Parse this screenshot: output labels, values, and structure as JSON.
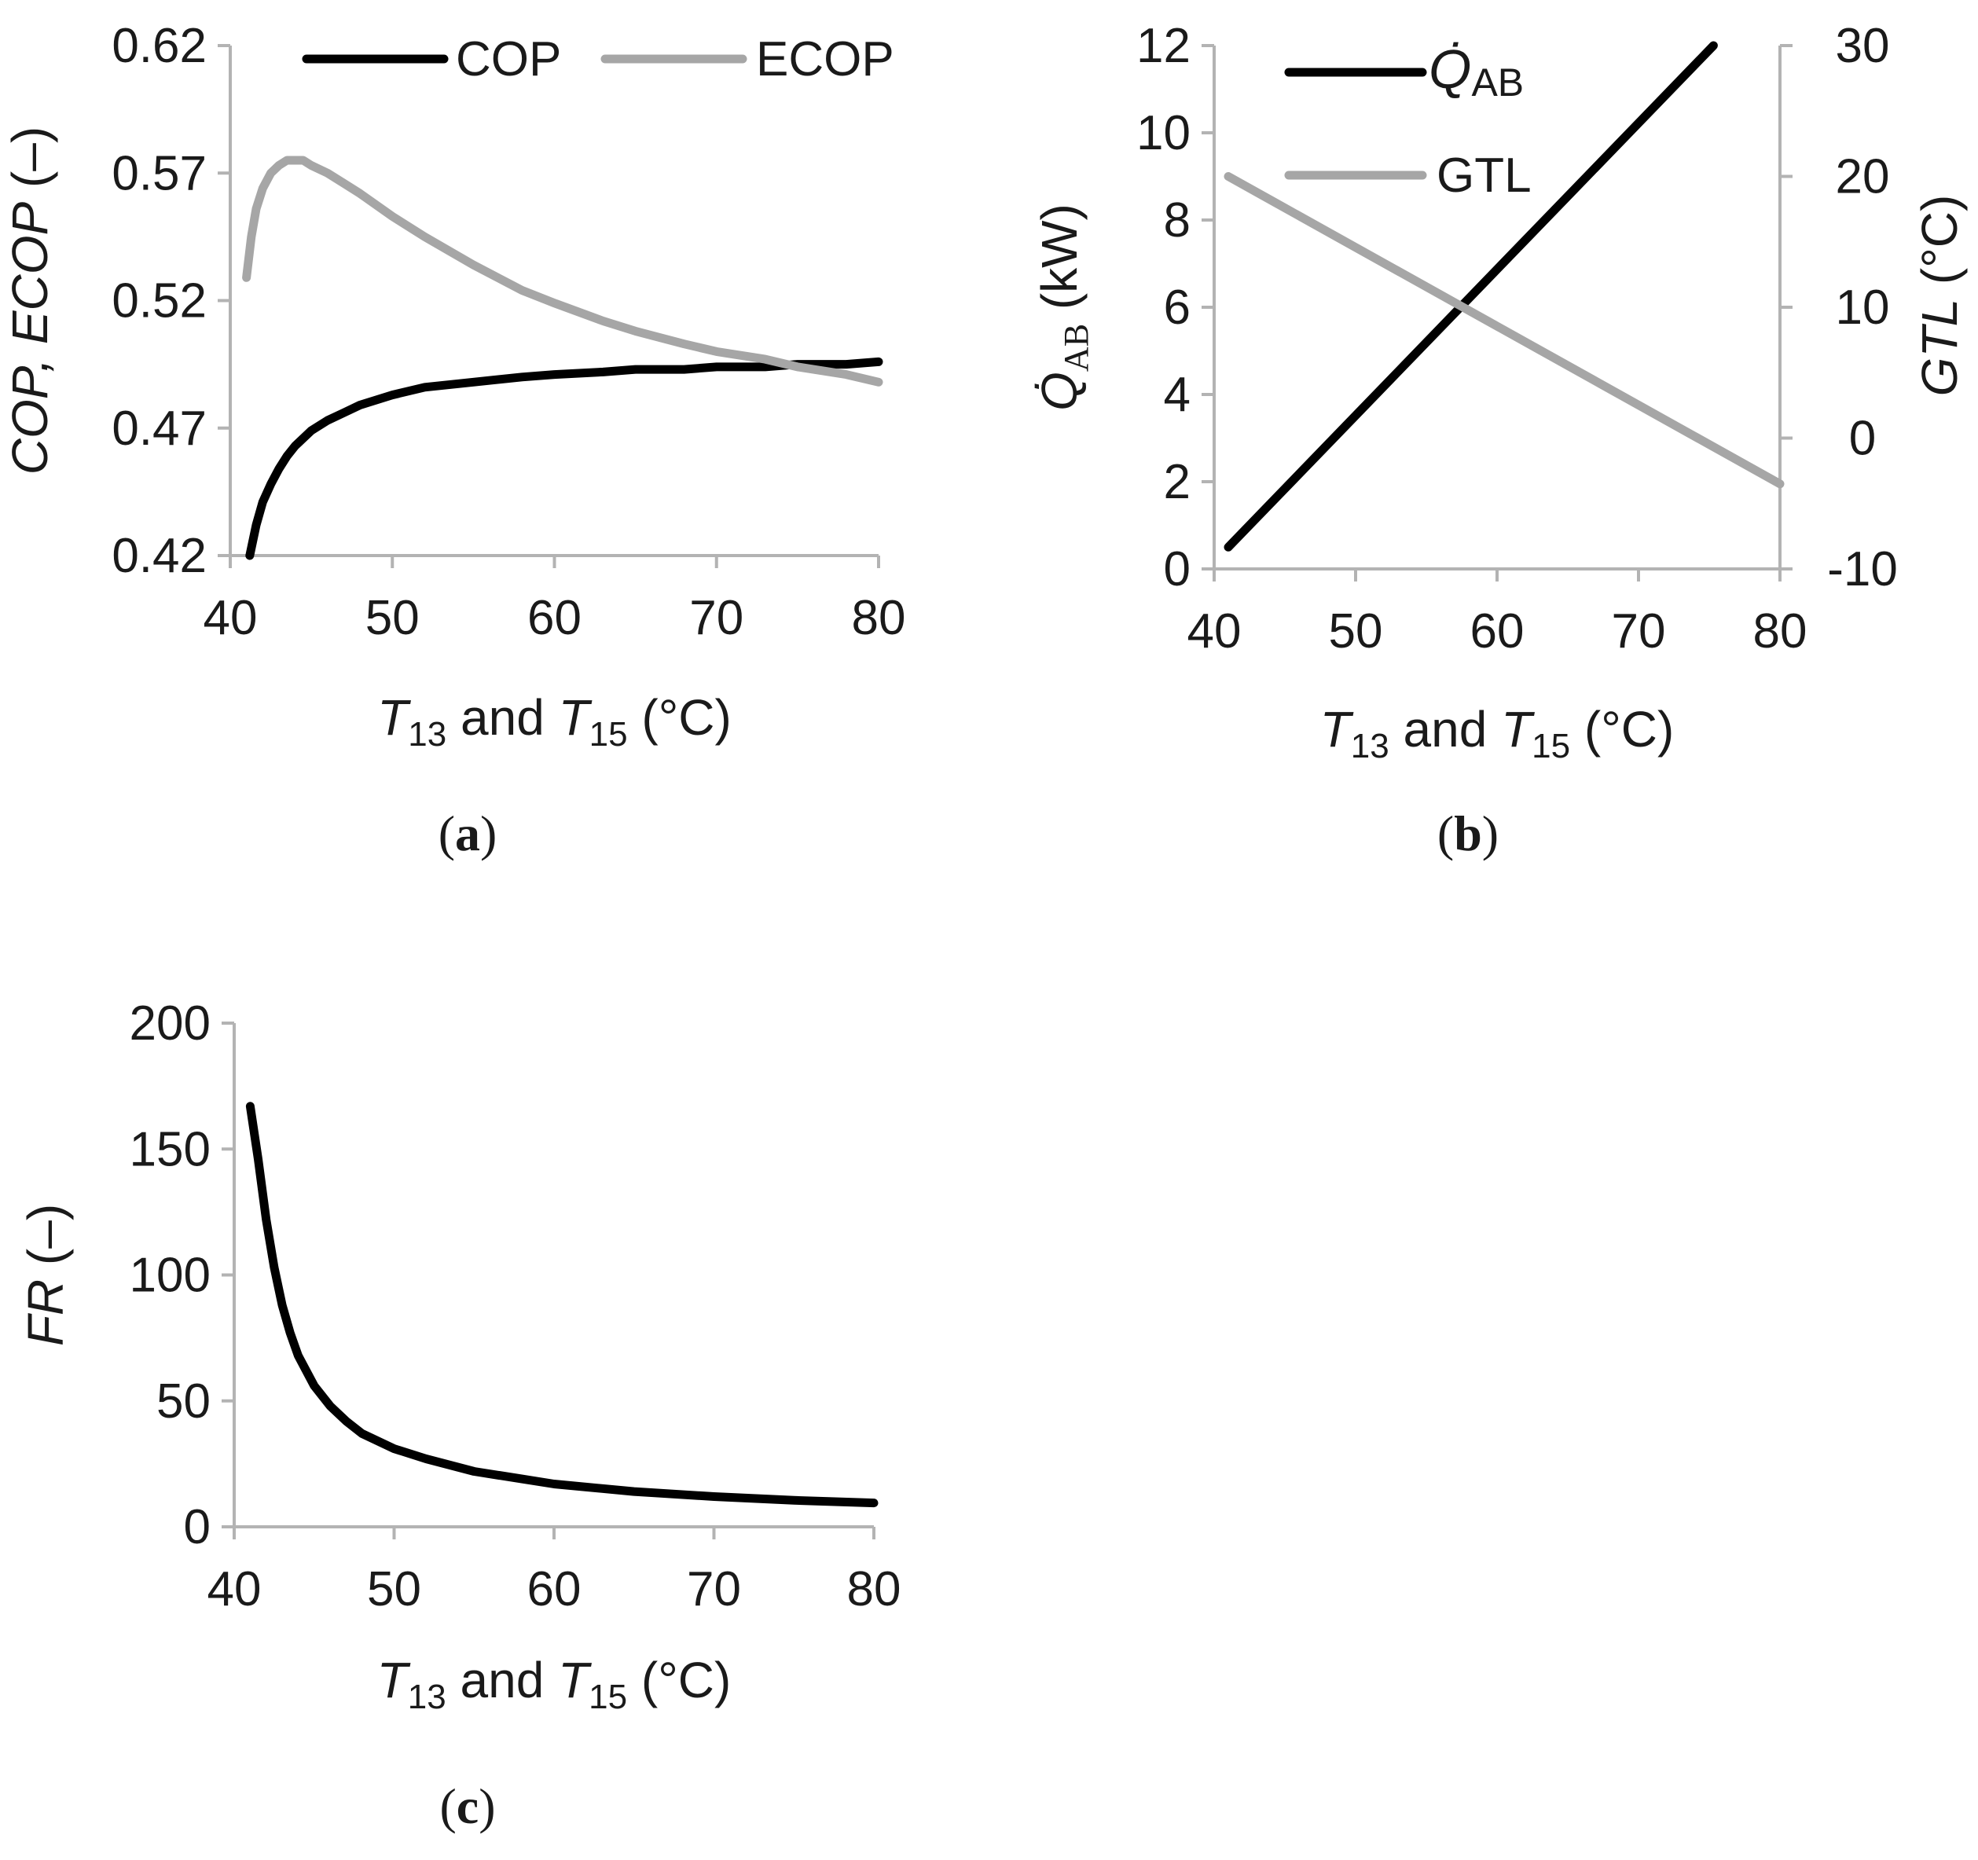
{
  "colors": {
    "black_series": "#000000",
    "gray_series": "#a6a6a6",
    "axis": "#b3b3b3",
    "text": "#1a1a1a"
  },
  "chart_data": [
    {
      "id": "a",
      "panel_prefix": "(",
      "panel_label": "a",
      "panel_suffix": ")",
      "type": "line",
      "x_label": {
        "pre": "",
        "t1": "T",
        "s1": "13",
        "mid": " and ",
        "t2": "T",
        "s2": "15",
        "post": " (°C)"
      },
      "y_label": {
        "italic": "COP, ECOP",
        "post": " (–)"
      },
      "xlim": [
        40,
        80
      ],
      "ylim": [
        0.42,
        0.62
      ],
      "x_ticks": [
        {
          "value": 40,
          "label": "40"
        },
        {
          "value": 50,
          "label": "50"
        },
        {
          "value": 60,
          "label": "60"
        },
        {
          "value": 70,
          "label": "70"
        },
        {
          "value": 80,
          "label": "80"
        }
      ],
      "y_ticks": [
        {
          "value": 0.42,
          "label": "0.42"
        },
        {
          "value": 0.47,
          "label": "0.47"
        },
        {
          "value": 0.52,
          "label": "0.52"
        },
        {
          "value": 0.57,
          "label": "0.57"
        },
        {
          "value": 0.62,
          "label": "0.62"
        }
      ],
      "series": [
        {
          "name": "COP",
          "color": "#000000",
          "axis": "left",
          "x": [
            41.2,
            41.6,
            42,
            42.5,
            43,
            43.5,
            44,
            45,
            46,
            47,
            48,
            50,
            52,
            55,
            58,
            60,
            63,
            65,
            68,
            70,
            73,
            75,
            78,
            80
          ],
          "y": [
            0.42,
            0.432,
            0.441,
            0.448,
            0.454,
            0.459,
            0.463,
            0.469,
            0.473,
            0.476,
            0.479,
            0.483,
            0.486,
            0.488,
            0.49,
            0.491,
            0.492,
            0.493,
            0.493,
            0.494,
            0.494,
            0.495,
            0.495,
            0.496
          ]
        },
        {
          "name": "ECOP",
          "color": "#a6a6a6",
          "axis": "left",
          "x": [
            41,
            41.3,
            41.6,
            42,
            42.5,
            43,
            43.5,
            44,
            44.5,
            45,
            46,
            47,
            48,
            50,
            52,
            55,
            58,
            60,
            63,
            65,
            68,
            70,
            73,
            75,
            78,
            80
          ],
          "y": [
            0.529,
            0.545,
            0.556,
            0.564,
            0.57,
            0.573,
            0.575,
            0.575,
            0.575,
            0.573,
            0.57,
            0.566,
            0.562,
            0.553,
            0.545,
            0.534,
            0.524,
            0.519,
            0.512,
            0.508,
            0.503,
            0.5,
            0.497,
            0.494,
            0.491,
            0.488
          ]
        }
      ]
    },
    {
      "id": "b",
      "panel_prefix": "(",
      "panel_label": "b",
      "panel_suffix": ")",
      "type": "line",
      "x_label": {
        "pre": "",
        "t1": "T",
        "s1": "13",
        "mid": " and ",
        "t2": "T",
        "s2": "15",
        "post": "  (°C)"
      },
      "y_label": {
        "italic": "Q̇",
        "sub": "AB",
        "post": " (kW)"
      },
      "y2_label": {
        "italic": "GTL",
        "post": " (°C)"
      },
      "xlim": [
        40,
        80
      ],
      "ylim": [
        0,
        12
      ],
      "y2lim": [
        -10,
        30
      ],
      "x_ticks": [
        {
          "value": 40,
          "label": "40"
        },
        {
          "value": 50,
          "label": "50"
        },
        {
          "value": 60,
          "label": "60"
        },
        {
          "value": 70,
          "label": "70"
        },
        {
          "value": 80,
          "label": "80"
        }
      ],
      "y_ticks": [
        {
          "value": 0,
          "label": "0"
        },
        {
          "value": 2,
          "label": "2"
        },
        {
          "value": 4,
          "label": "4"
        },
        {
          "value": 6,
          "label": "6"
        },
        {
          "value": 8,
          "label": "8"
        },
        {
          "value": 10,
          "label": "10"
        },
        {
          "value": 12,
          "label": "12"
        }
      ],
      "y2_ticks": [
        {
          "value": -10,
          "label": "-10"
        },
        {
          "value": 0,
          "label": "0"
        },
        {
          "value": 10,
          "label": "10"
        },
        {
          "value": 20,
          "label": "20"
        },
        {
          "value": 30,
          "label": "30"
        }
      ],
      "series": [
        {
          "name": "Q̇",
          "name_sub": "AB",
          "color": "#000000",
          "axis": "left",
          "x": [
            41,
            75.3
          ],
          "y": [
            0.5,
            12.0
          ]
        },
        {
          "name": "GTL",
          "color": "#a6a6a6",
          "axis": "right",
          "x": [
            41,
            80
          ],
          "y": [
            20.0,
            -3.5
          ]
        }
      ]
    },
    {
      "id": "c",
      "panel_prefix": "(",
      "panel_label": "c",
      "panel_suffix": ")",
      "type": "line",
      "x_label": {
        "pre": "",
        "t1": "T",
        "s1": "13",
        "mid": " and ",
        "t2": "T",
        "s2": "15",
        "post": " (°C)"
      },
      "y_label": {
        "italic": "FR",
        "post": " (–)"
      },
      "xlim": [
        40,
        80
      ],
      "ylim": [
        0,
        200
      ],
      "x_ticks": [
        {
          "value": 40,
          "label": "40"
        },
        {
          "value": 50,
          "label": "50"
        },
        {
          "value": 60,
          "label": "60"
        },
        {
          "value": 70,
          "label": "70"
        },
        {
          "value": 80,
          "label": "80"
        }
      ],
      "y_ticks": [
        {
          "value": 0,
          "label": "0"
        },
        {
          "value": 50,
          "label": "50"
        },
        {
          "value": 100,
          "label": "100"
        },
        {
          "value": 150,
          "label": "150"
        },
        {
          "value": 200,
          "label": "200"
        }
      ],
      "series": [
        {
          "name": "FR",
          "color": "#000000",
          "axis": "left",
          "x": [
            41,
            41.5,
            42,
            42.5,
            43,
            43.5,
            44,
            45,
            46,
            47,
            48,
            50,
            52,
            55,
            58,
            60,
            65,
            70,
            75,
            80
          ],
          "y": [
            167,
            146,
            122,
            103,
            88,
            77,
            68,
            56,
            48,
            42,
            37,
            31,
            27,
            22,
            19,
            17,
            14,
            12,
            10.5,
            9.5
          ]
        }
      ]
    }
  ]
}
